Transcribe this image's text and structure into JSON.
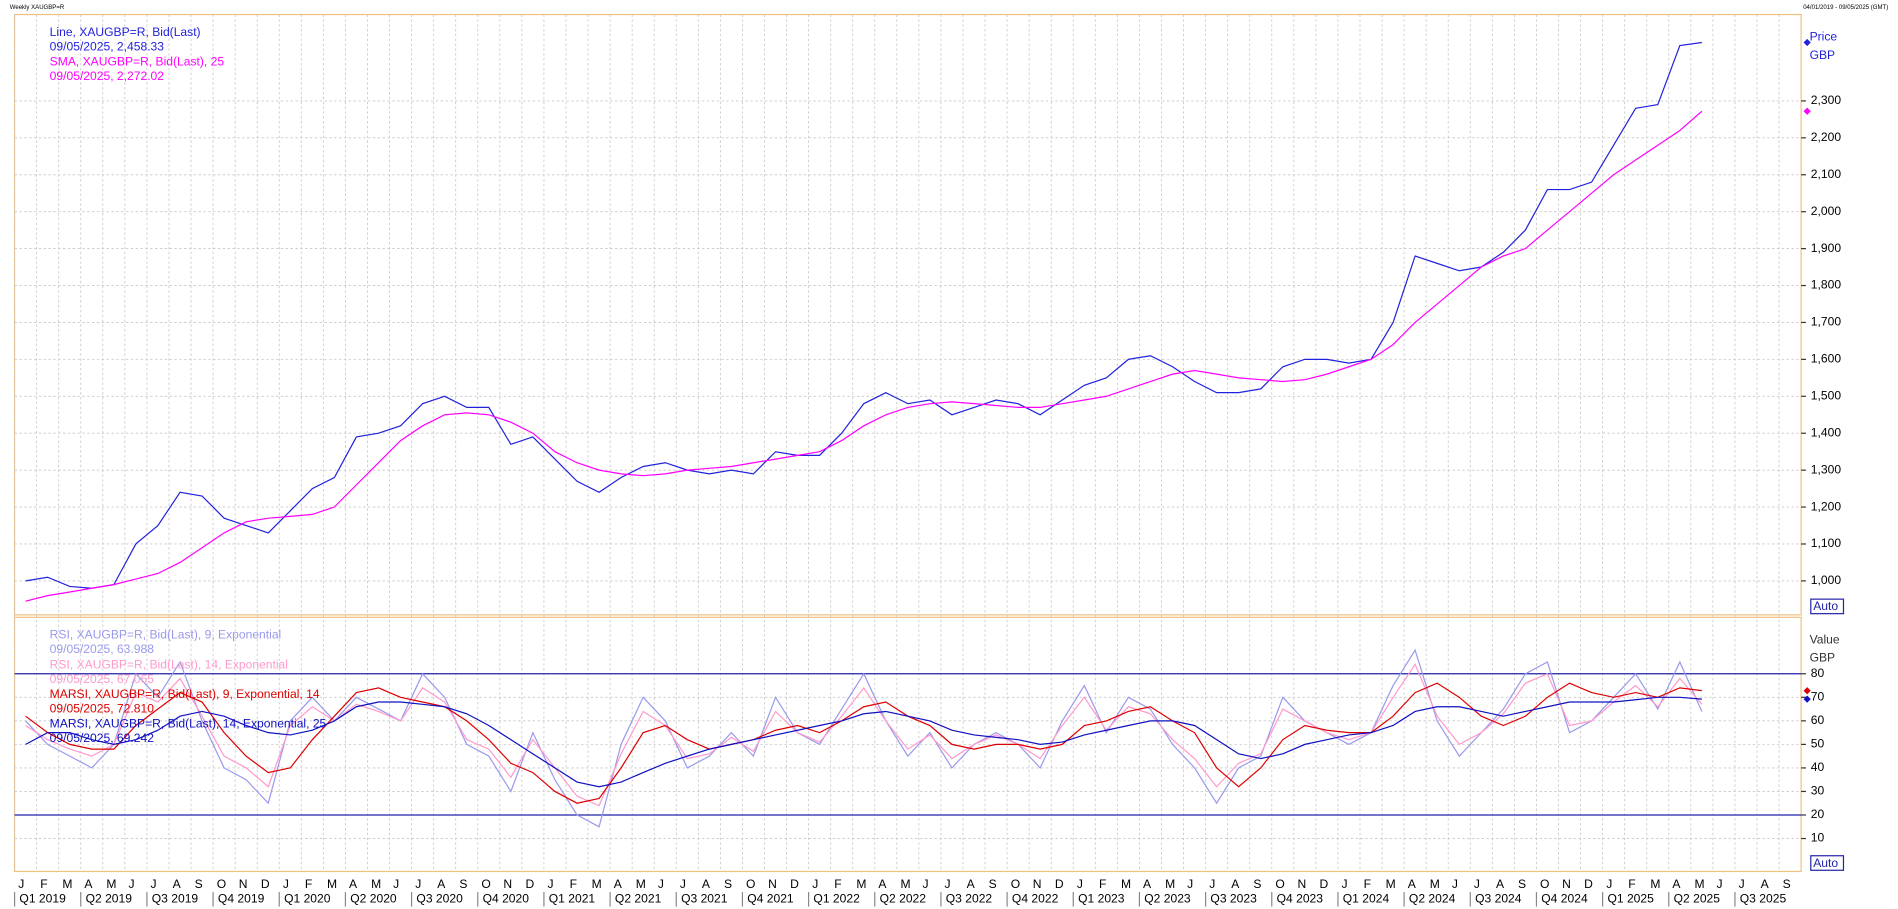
{
  "chart_data": {
    "type": "line",
    "title": "Weekly XAUGBP=R",
    "date_range": "04/01/2019 - 09/05/2025 (GMT)",
    "grid": true,
    "categories": [
      "J",
      "F",
      "M",
      "A",
      "M",
      "J",
      "J",
      "A",
      "S",
      "O",
      "N",
      "D",
      "J",
      "F",
      "M",
      "A",
      "M",
      "J",
      "J",
      "A",
      "S",
      "O",
      "N",
      "D",
      "J",
      "F",
      "M",
      "A",
      "M",
      "J",
      "J",
      "A",
      "S",
      "O",
      "N",
      "D",
      "J",
      "F",
      "M",
      "A",
      "M",
      "J",
      "J",
      "A",
      "S",
      "O",
      "N",
      "D",
      "J",
      "F",
      "M",
      "A",
      "M",
      "J",
      "J",
      "A",
      "S",
      "O",
      "N",
      "D",
      "J",
      "F",
      "M",
      "A",
      "M",
      "J",
      "J",
      "A",
      "S",
      "O",
      "N",
      "D",
      "J",
      "F",
      "M",
      "A",
      "M",
      "J",
      "J",
      "A",
      "S"
    ],
    "quarters": [
      "Q1 2019",
      "Q2 2019",
      "Q3 2019",
      "Q4 2019",
      "Q1 2020",
      "Q2 2020",
      "Q3 2020",
      "Q4 2020",
      "Q1 2021",
      "Q2 2021",
      "Q3 2021",
      "Q4 2021",
      "Q1 2022",
      "Q2 2022",
      "Q3 2022",
      "Q4 2022",
      "Q1 2023",
      "Q2 2023",
      "Q3 2023",
      "Q4 2023",
      "Q1 2024",
      "Q2 2024",
      "Q3 2024",
      "Q4 2024",
      "Q1 2025",
      "Q2 2025",
      "Q3 2025"
    ],
    "panels": [
      {
        "axis_title": "Price",
        "axis_unit": "GBP",
        "auto_label": "Auto",
        "ylim": [
          908,
          2534
        ],
        "yticks": [
          {
            "value": 1000,
            "label": "1,000"
          },
          {
            "value": 1100,
            "label": "1,100"
          },
          {
            "value": 1200,
            "label": "1,200"
          },
          {
            "value": 1300,
            "label": "1,300"
          },
          {
            "value": 1400,
            "label": "1,400"
          },
          {
            "value": 1500,
            "label": "1,500"
          },
          {
            "value": 1600,
            "label": "1,600"
          },
          {
            "value": 1700,
            "label": "1,700"
          },
          {
            "value": 1800,
            "label": "1,800"
          },
          {
            "value": 1900,
            "label": "1,900"
          },
          {
            "value": 2000,
            "label": "2,000"
          },
          {
            "value": 2100,
            "label": "2,100"
          },
          {
            "value": 2200,
            "label": "2,200"
          },
          {
            "value": 2300,
            "label": "2,300"
          }
        ],
        "series": [
          {
            "name": "Line, XAUGBP=R, Bid(Last)",
            "last_label": "09/05/2025, 2,458.33",
            "color": "#2222dd",
            "end_marker": true,
            "values": [
              1000,
              1010,
              985,
              980,
              990,
              1100,
              1150,
              1240,
              1230,
              1170,
              1150,
              1130,
              1190,
              1250,
              1280,
              1390,
              1400,
              1420,
              1480,
              1500,
              1470,
              1470,
              1370,
              1390,
              1330,
              1270,
              1240,
              1280,
              1310,
              1320,
              1300,
              1290,
              1300,
              1290,
              1350,
              1340,
              1340,
              1400,
              1480,
              1510,
              1480,
              1490,
              1450,
              1470,
              1490,
              1480,
              1450,
              1490,
              1530,
              1550,
              1600,
              1610,
              1580,
              1540,
              1510,
              1510,
              1520,
              1580,
              1600,
              1600,
              1590,
              1600,
              1700,
              1880,
              1860,
              1840,
              1850,
              1890,
              1950,
              2060,
              2060,
              2080,
              2180,
              2280,
              2290,
              2450,
              2458.33,
              null,
              null,
              null,
              null
            ]
          },
          {
            "name": "SMA, XAUGBP=R, Bid(Last),  25",
            "last_label": "09/05/2025, 2,272.02",
            "color": "#ff00ff",
            "end_marker": true,
            "values": [
              945,
              960,
              970,
              980,
              990,
              1005,
              1020,
              1050,
              1090,
              1130,
              1160,
              1170,
              1175,
              1180,
              1200,
              1260,
              1320,
              1380,
              1420,
              1450,
              1455,
              1450,
              1430,
              1400,
              1350,
              1320,
              1300,
              1290,
              1285,
              1290,
              1300,
              1305,
              1310,
              1320,
              1330,
              1340,
              1350,
              1380,
              1420,
              1450,
              1470,
              1480,
              1485,
              1480,
              1475,
              1470,
              1470,
              1480,
              1490,
              1500,
              1520,
              1540,
              1560,
              1570,
              1560,
              1550,
              1545,
              1540,
              1545,
              1560,
              1580,
              1600,
              1640,
              1700,
              1750,
              1800,
              1850,
              1880,
              1900,
              1950,
              2000,
              2050,
              2100,
              2140,
              2180,
              2220,
              2272.02,
              null,
              null,
              null,
              null
            ]
          }
        ]
      },
      {
        "axis_title": "Value",
        "axis_unit": "GBP",
        "auto_label": "Auto",
        "ylim": [
          -4,
          104
        ],
        "yticks": [
          10,
          20,
          30,
          40,
          50,
          60,
          70,
          80
        ],
        "hlines": [
          20,
          80
        ],
        "series": [
          {
            "name": "RSI, XAUGBP=R, Bid(Last),  9, Exponential",
            "last_label": "09/05/2025, 63.988",
            "color": "#9999ee",
            "end_marker": false,
            "values": [
              60,
              50,
              45,
              40,
              50,
              80,
              70,
              85,
              60,
              40,
              35,
              25,
              60,
              70,
              60,
              70,
              65,
              60,
              80,
              70,
              50,
              45,
              30,
              55,
              35,
              20,
              15,
              50,
              70,
              60,
              40,
              45,
              55,
              45,
              70,
              55,
              50,
              65,
              80,
              60,
              45,
              55,
              40,
              50,
              55,
              50,
              40,
              60,
              75,
              55,
              70,
              65,
              50,
              40,
              25,
              40,
              45,
              70,
              60,
              55,
              50,
              55,
              75,
              90,
              60,
              45,
              55,
              65,
              80,
              85,
              55,
              60,
              70,
              80,
              65,
              85,
              63.988,
              null,
              null,
              null,
              null
            ]
          },
          {
            "name": "RSI, XAUGBP=R, Bid(Last),  14, Exponential",
            "last_label": "09/05/2025, 67.065",
            "color": "#ff99cc",
            "end_marker": false,
            "values": [
              58,
              52,
              48,
              45,
              50,
              72,
              68,
              78,
              62,
              45,
              40,
              32,
              58,
              66,
              60,
              67,
              64,
              60,
              74,
              68,
              52,
              48,
              36,
              52,
              40,
              28,
              24,
              46,
              64,
              58,
              44,
              46,
              53,
              47,
              64,
              55,
              51,
              62,
              74,
              60,
              48,
              54,
              44,
              50,
              54,
              50,
              44,
              58,
              70,
              56,
              66,
              63,
              52,
              44,
              32,
              42,
              46,
              65,
              60,
              55,
              52,
              55,
              70,
              84,
              62,
              50,
              55,
              63,
              76,
              80,
              58,
              60,
              68,
              75,
              66,
              78,
              67.065,
              null,
              null,
              null,
              null
            ]
          },
          {
            "name": "MARSI, XAUGBP=R, Bid(Last),  9, Exponential, 14",
            "last_label": "09/05/2025, 72.810",
            "color": "#dd0000",
            "end_marker": true,
            "values": [
              62,
              55,
              50,
              48,
              48,
              58,
              65,
              72,
              68,
              55,
              45,
              38,
              40,
              52,
              62,
              72,
              74,
              70,
              68,
              66,
              60,
              52,
              42,
              38,
              30,
              25,
              27,
              40,
              55,
              58,
              52,
              48,
              50,
              52,
              56,
              58,
              55,
              60,
              66,
              68,
              62,
              58,
              50,
              48,
              50,
              50,
              48,
              50,
              58,
              60,
              64,
              66,
              60,
              55,
              40,
              32,
              40,
              52,
              58,
              56,
              55,
              55,
              62,
              72,
              76,
              70,
              62,
              58,
              62,
              70,
              76,
              72,
              70,
              72,
              70,
              74,
              72.81,
              null,
              null,
              null,
              null
            ]
          },
          {
            "name": "MARSI, XAUGBP=R, Bid(Last),  14, Exponential, 25",
            "last_label": "09/05/2025, 69.242",
            "color": "#1010c0",
            "end_marker": true,
            "values": [
              50,
              55,
              55,
              52,
              50,
              52,
              56,
              62,
              64,
              62,
              58,
              55,
              54,
              56,
              60,
              66,
              68,
              68,
              67,
              66,
              63,
              58,
              52,
              46,
              40,
              34,
              32,
              34,
              38,
              42,
              45,
              48,
              50,
              52,
              54,
              56,
              58,
              60,
              63,
              64,
              62,
              60,
              56,
              54,
              53,
              52,
              50,
              51,
              54,
              56,
              58,
              60,
              60,
              58,
              52,
              46,
              44,
              46,
              50,
              52,
              54,
              55,
              58,
              64,
              66,
              66,
              64,
              62,
              64,
              66,
              68,
              68,
              68,
              69,
              70,
              70,
              69.242,
              null,
              null,
              null,
              null
            ]
          }
        ]
      }
    ]
  }
}
